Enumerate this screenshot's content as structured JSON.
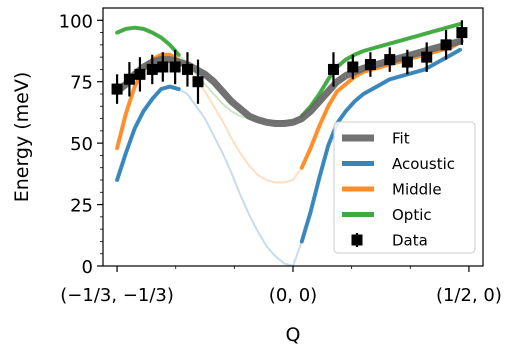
{
  "chart_data": {
    "type": "line",
    "xlabel": "Q",
    "ylabel": "Energy (meV)",
    "ylim": [
      0,
      105
    ],
    "xlim": [
      -1.08,
      1.08
    ],
    "x_ticks": [
      {
        "x": -1,
        "label": "(−1/3, −1/3)"
      },
      {
        "x": 0,
        "label": "(0, 0)"
      },
      {
        "x": 1,
        "label": "(1/2, 0)"
      }
    ],
    "y_ticks": [
      0,
      25,
      50,
      75,
      100
    ],
    "grid": false,
    "legend_position": "bottom-right",
    "legend_entries": [
      "Fit",
      "Acoustic",
      "Middle",
      "Optic",
      "Data"
    ],
    "series": [
      {
        "name": "Acoustic",
        "color": "#1f77b4",
        "x": [
          -1,
          -0.95,
          -0.9,
          -0.85,
          -0.8,
          -0.75,
          -0.7,
          -0.65,
          -0.6,
          -0.55,
          -0.5,
          -0.45,
          -0.4,
          -0.35,
          -0.3,
          -0.25,
          -0.2,
          -0.15,
          -0.1,
          -0.05,
          0,
          0.05,
          0.1,
          0.15,
          0.2,
          0.25,
          0.3,
          0.35,
          0.4,
          0.45,
          0.5,
          0.55,
          0.6,
          0.65,
          0.7,
          0.75,
          0.8,
          0.85,
          0.9,
          0.95
        ],
        "y": [
          35,
          46,
          56,
          63,
          68,
          72,
          73,
          72,
          70,
          65,
          60,
          53,
          46,
          38,
          29,
          21,
          14,
          8,
          4,
          1,
          0,
          10,
          22,
          36,
          49,
          58,
          63,
          67,
          70,
          72,
          74,
          76,
          77,
          78,
          79,
          80,
          82,
          84,
          86,
          88
        ]
      },
      {
        "name": "Middle",
        "color": "#ff7f0e",
        "x": [
          -1,
          -0.95,
          -0.9,
          -0.85,
          -0.8,
          -0.75,
          -0.7,
          -0.65,
          -0.6,
          -0.55,
          -0.5,
          -0.45,
          -0.4,
          -0.35,
          -0.3,
          -0.25,
          -0.2,
          -0.15,
          -0.1,
          -0.05,
          0,
          0.05,
          0.1,
          0.15,
          0.2,
          0.25,
          0.3,
          0.35,
          0.4,
          0.45,
          0.5,
          0.55,
          0.6,
          0.65,
          0.7,
          0.75,
          0.8,
          0.85,
          0.9,
          0.95
        ],
        "y": [
          48,
          62,
          73,
          80,
          84,
          86,
          86,
          84,
          80,
          76,
          71,
          65,
          59,
          52,
          46,
          41,
          37,
          35,
          34,
          34,
          35,
          40,
          48,
          57,
          65,
          71,
          74,
          77,
          79,
          80,
          81,
          82,
          83,
          84,
          85,
          86,
          87,
          88,
          89,
          91
        ]
      },
      {
        "name": "Optic",
        "color": "#2ca02c",
        "x": [
          -1,
          -0.95,
          -0.9,
          -0.85,
          -0.8,
          -0.75,
          -0.7,
          -0.65,
          -0.6,
          -0.55,
          -0.5,
          -0.45,
          -0.4,
          -0.35,
          -0.3,
          -0.25,
          -0.2,
          -0.15,
          -0.1,
          -0.05,
          0,
          0.05,
          0.1,
          0.15,
          0.2,
          0.25,
          0.3,
          0.35,
          0.4,
          0.45,
          0.5,
          0.55,
          0.6,
          0.65,
          0.7,
          0.75,
          0.8,
          0.85,
          0.9,
          0.95
        ],
        "y": [
          95,
          96.5,
          97,
          96.5,
          95,
          93,
          90,
          86,
          82,
          78,
          74,
          70,
          66,
          63,
          61,
          60,
          59,
          59,
          59,
          59,
          59,
          61,
          65,
          70,
          76,
          81,
          84,
          86,
          87.5,
          88.5,
          89.5,
          90.5,
          91.5,
          92.5,
          93.5,
          94.5,
          95.5,
          96.5,
          97.5,
          98.5
        ]
      },
      {
        "name": "Fit",
        "color": "#666666",
        "x": [
          -1,
          -0.95,
          -0.9,
          -0.85,
          -0.8,
          -0.75,
          -0.7,
          -0.65,
          -0.6,
          -0.55,
          -0.5,
          -0.45,
          -0.4,
          -0.35,
          -0.3,
          -0.25,
          -0.2,
          -0.15,
          -0.1,
          -0.05,
          0,
          0.05,
          0.1,
          0.15,
          0.2,
          0.25,
          0.3,
          0.35,
          0.4,
          0.45,
          0.5,
          0.55,
          0.6,
          0.65,
          0.7,
          0.75,
          0.8,
          0.85,
          0.9,
          0.95
        ],
        "y": [
          71,
          74,
          78,
          81,
          83,
          84,
          84,
          83,
          82,
          80,
          78,
          75,
          71,
          67,
          64,
          61,
          59.5,
          58.5,
          58,
          58,
          58.5,
          60,
          63,
          67,
          71,
          75,
          77.5,
          79,
          80.5,
          81.5,
          82.5,
          83.5,
          84.5,
          85.5,
          86.5,
          87.5,
          88.5,
          89.5,
          90.5,
          91.5
        ]
      }
    ],
    "data_points": {
      "name": "Data",
      "color": "#000000",
      "x": [
        -1,
        -0.93,
        -0.87,
        -0.8,
        -0.74,
        -0.67,
        -0.6,
        -0.54,
        0.23,
        0.34,
        0.44,
        0.55,
        0.65,
        0.76,
        0.87,
        0.96
      ],
      "y": [
        72,
        76,
        78,
        80,
        81,
        81,
        80,
        75,
        80,
        81,
        82,
        84,
        83,
        85,
        90,
        95
      ],
      "err": [
        6,
        7,
        7,
        6,
        6,
        7,
        7,
        9,
        7,
        5,
        5,
        5,
        5,
        6,
        6,
        5
      ]
    }
  }
}
